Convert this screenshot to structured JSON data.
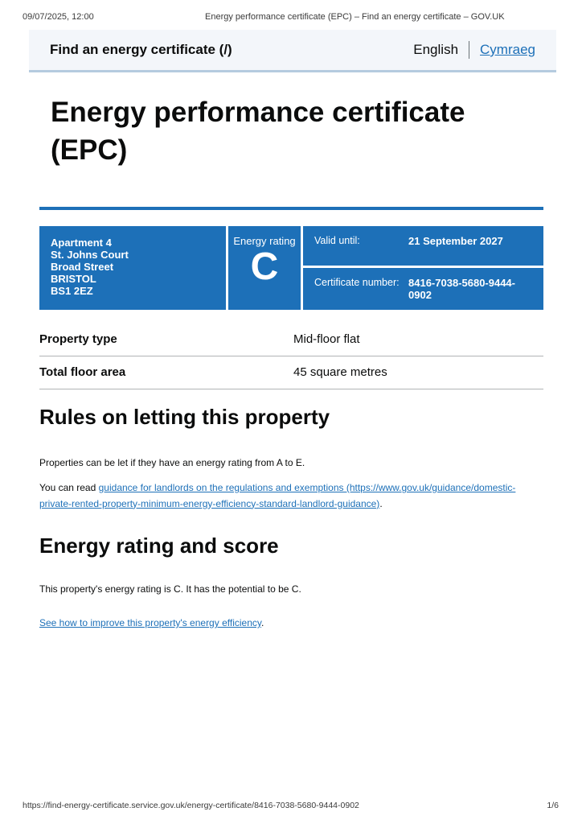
{
  "print_header": {
    "datetime": "09/07/2025, 12:00",
    "title": "Energy performance certificate (EPC) – Find an energy certificate – GOV.UK"
  },
  "header": {
    "service_name": "Find an energy certificate (/)",
    "language_current": "English",
    "language_link": "Cymraeg"
  },
  "page": {
    "title": "Energy performance certificate (EPC)"
  },
  "summary_box": {
    "address_lines": [
      "Apartment 4",
      "St. Johns Court",
      "Broad Street",
      "BRISTOL",
      "BS1 2EZ"
    ],
    "energy_rating_label": "Energy rating",
    "energy_rating": "C",
    "valid_until_label": "Valid until:",
    "valid_until": "21 September 2027",
    "certificate_number_label": "Certificate number:",
    "certificate_number": "8416-7038-5680-9444-0902"
  },
  "property_table": {
    "rows": [
      {
        "label": "Property type",
        "value": "Mid-floor flat"
      },
      {
        "label": "Total floor area",
        "value": "45 square metres"
      }
    ]
  },
  "rules_section": {
    "heading": "Rules on letting this property",
    "paragraph1": "Properties can be let if they have an energy rating from A to E.",
    "paragraph2_prefix": "You can read ",
    "paragraph2_link": "guidance for landlords on the regulations and exemptions (https://www.gov.uk/guidance/domestic-private-rented-property-minimum-energy-efficiency-standard-landlord-guidance)",
    "paragraph2_suffix": "."
  },
  "rating_section": {
    "heading": "Energy rating and score",
    "paragraph1": "This property's energy rating is C. It has the potential to be C.",
    "improve_link": "See how to improve this property's energy efficiency",
    "improve_suffix": "."
  },
  "print_footer": {
    "url": "https://find-energy-certificate.service.gov.uk/energy-certificate/8416-7038-5680-9444-0902",
    "page_indicator": "1/6"
  },
  "colors": {
    "govuk_blue": "#1d70b8",
    "link_blue": "#1d70b8",
    "header_bar_bg": "#f3f6fa",
    "header_bar_border": "#b5cbdf",
    "table_border": "#b1b4b6"
  }
}
